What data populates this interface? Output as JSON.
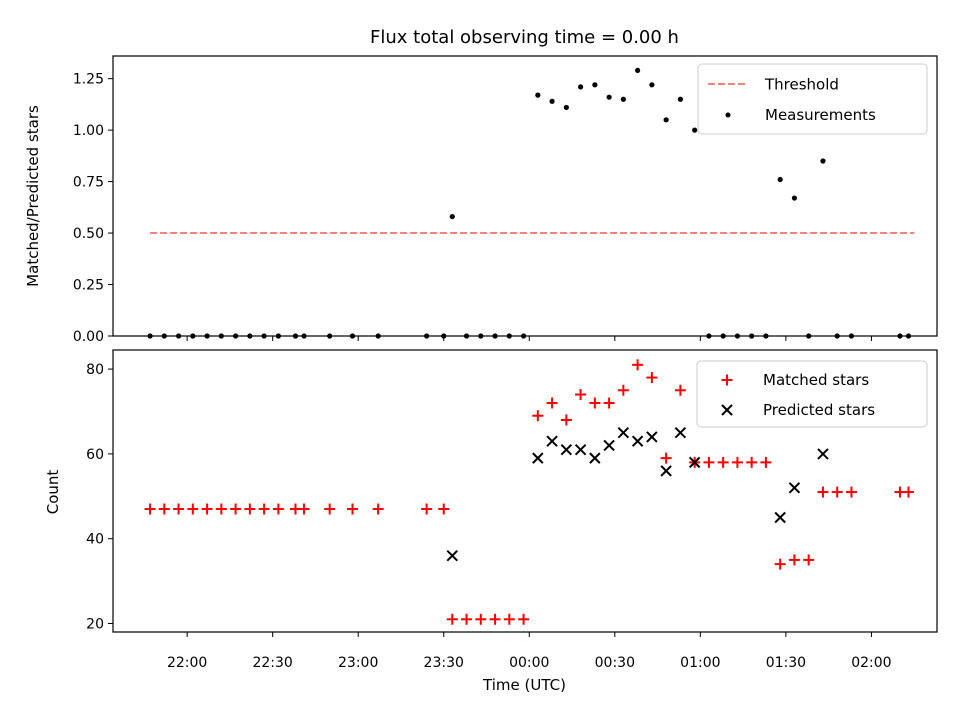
{
  "chart_data": [
    {
      "type": "scatter",
      "title": "Flux total observing time = 0.00 h",
      "xlabel": "",
      "ylabel": "Matched/Predicted stars",
      "xlim": [
        "21:34",
        "02:23"
      ],
      "ylim": [
        0,
        1.36
      ],
      "yticks": [
        0.0,
        0.25,
        0.5,
        0.75,
        1.0,
        1.25
      ],
      "ytick_labels": [
        "0.00",
        "0.25",
        "0.50",
        "0.75",
        "1.00",
        "1.25"
      ],
      "grid": false,
      "legend_position": "top-right",
      "colors": {
        "threshold": "#ff7f7f",
        "measurements": "#000000"
      },
      "series": [
        {
          "name": "Threshold",
          "kind": "dashed-line",
          "x": [
            "21:47",
            "02:15"
          ],
          "y": [
            0.5,
            0.5
          ]
        },
        {
          "name": "Measurements",
          "kind": "dots",
          "x": [
            "21:47",
            "21:52",
            "21:57",
            "22:02",
            "22:07",
            "22:12",
            "22:17",
            "22:22",
            "22:27",
            "22:32",
            "22:38",
            "22:41",
            "22:50",
            "22:58",
            "23:07",
            "23:24",
            "23:30",
            "23:33",
            "23:38",
            "23:43",
            "23:48",
            "23:53",
            "23:58",
            "24:03",
            "24:08",
            "24:13",
            "24:18",
            "24:23",
            "24:28",
            "24:33",
            "24:38",
            "24:43",
            "24:48",
            "24:53",
            "24:58",
            "25:03",
            "25:08",
            "25:13",
            "25:18",
            "25:23",
            "25:28",
            "25:33",
            "25:38",
            "25:43",
            "25:48",
            "25:53",
            "26:10",
            "26:13"
          ],
          "y": [
            0,
            0,
            0,
            0,
            0,
            0,
            0,
            0,
            0,
            0,
            0,
            0,
            0,
            0,
            0,
            0,
            0,
            0.58,
            0,
            0,
            0,
            0,
            0,
            1.17,
            1.14,
            1.11,
            1.21,
            1.22,
            1.16,
            1.15,
            1.29,
            1.22,
            1.05,
            1.15,
            1.0,
            0,
            0,
            0,
            0,
            0,
            0.76,
            0.67,
            0,
            0.85,
            0,
            0,
            0,
            0
          ]
        }
      ]
    },
    {
      "type": "scatter",
      "title": "",
      "xlabel": "Time (UTC)",
      "ylabel": "Count",
      "xlim": [
        "21:34",
        "02:23"
      ],
      "ylim": [
        18,
        84.5
      ],
      "yticks": [
        20,
        40,
        60,
        80
      ],
      "ytick_labels": [
        "20",
        "40",
        "60",
        "80"
      ],
      "xticks": [
        "22:00",
        "22:30",
        "23:00",
        "23:30",
        "00:00",
        "00:30",
        "01:00",
        "01:30",
        "02:00"
      ],
      "grid": false,
      "legend_position": "top-right",
      "colors": {
        "matched": "#ff0000",
        "predicted": "#000000"
      },
      "series": [
        {
          "name": "Matched stars",
          "kind": "plus",
          "x": [
            "21:47",
            "21:52",
            "21:57",
            "22:02",
            "22:07",
            "22:12",
            "22:17",
            "22:22",
            "22:27",
            "22:32",
            "22:38",
            "22:41",
            "22:50",
            "22:58",
            "23:07",
            "23:24",
            "23:30",
            "23:33",
            "23:38",
            "23:43",
            "23:48",
            "23:53",
            "23:58",
            "24:03",
            "24:08",
            "24:13",
            "24:18",
            "24:23",
            "24:28",
            "24:33",
            "24:38",
            "24:43",
            "24:48",
            "24:53",
            "24:58",
            "25:03",
            "25:08",
            "25:13",
            "25:18",
            "25:23",
            "25:28",
            "25:33",
            "25:38",
            "25:43",
            "25:48",
            "25:53",
            "26:10",
            "26:13"
          ],
          "y": [
            47,
            47,
            47,
            47,
            47,
            47,
            47,
            47,
            47,
            47,
            47,
            47,
            47,
            47,
            47,
            47,
            47,
            21,
            21,
            21,
            21,
            21,
            21,
            69,
            72,
            68,
            74,
            72,
            72,
            75,
            81,
            78,
            59,
            75,
            58,
            58,
            58,
            58,
            58,
            58,
            34,
            35,
            35,
            51,
            51,
            51,
            51,
            51
          ]
        },
        {
          "name": "Predicted stars",
          "kind": "x",
          "x": [
            "23:33",
            "24:03",
            "24:08",
            "24:13",
            "24:18",
            "24:23",
            "24:28",
            "24:33",
            "24:38",
            "24:43",
            "24:48",
            "24:53",
            "24:58",
            "25:28",
            "25:33",
            "25:43"
          ],
          "y": [
            36,
            59,
            63,
            61,
            61,
            59,
            62,
            65,
            63,
            64,
            56,
            65,
            58,
            45,
            52,
            60
          ]
        }
      ]
    }
  ]
}
